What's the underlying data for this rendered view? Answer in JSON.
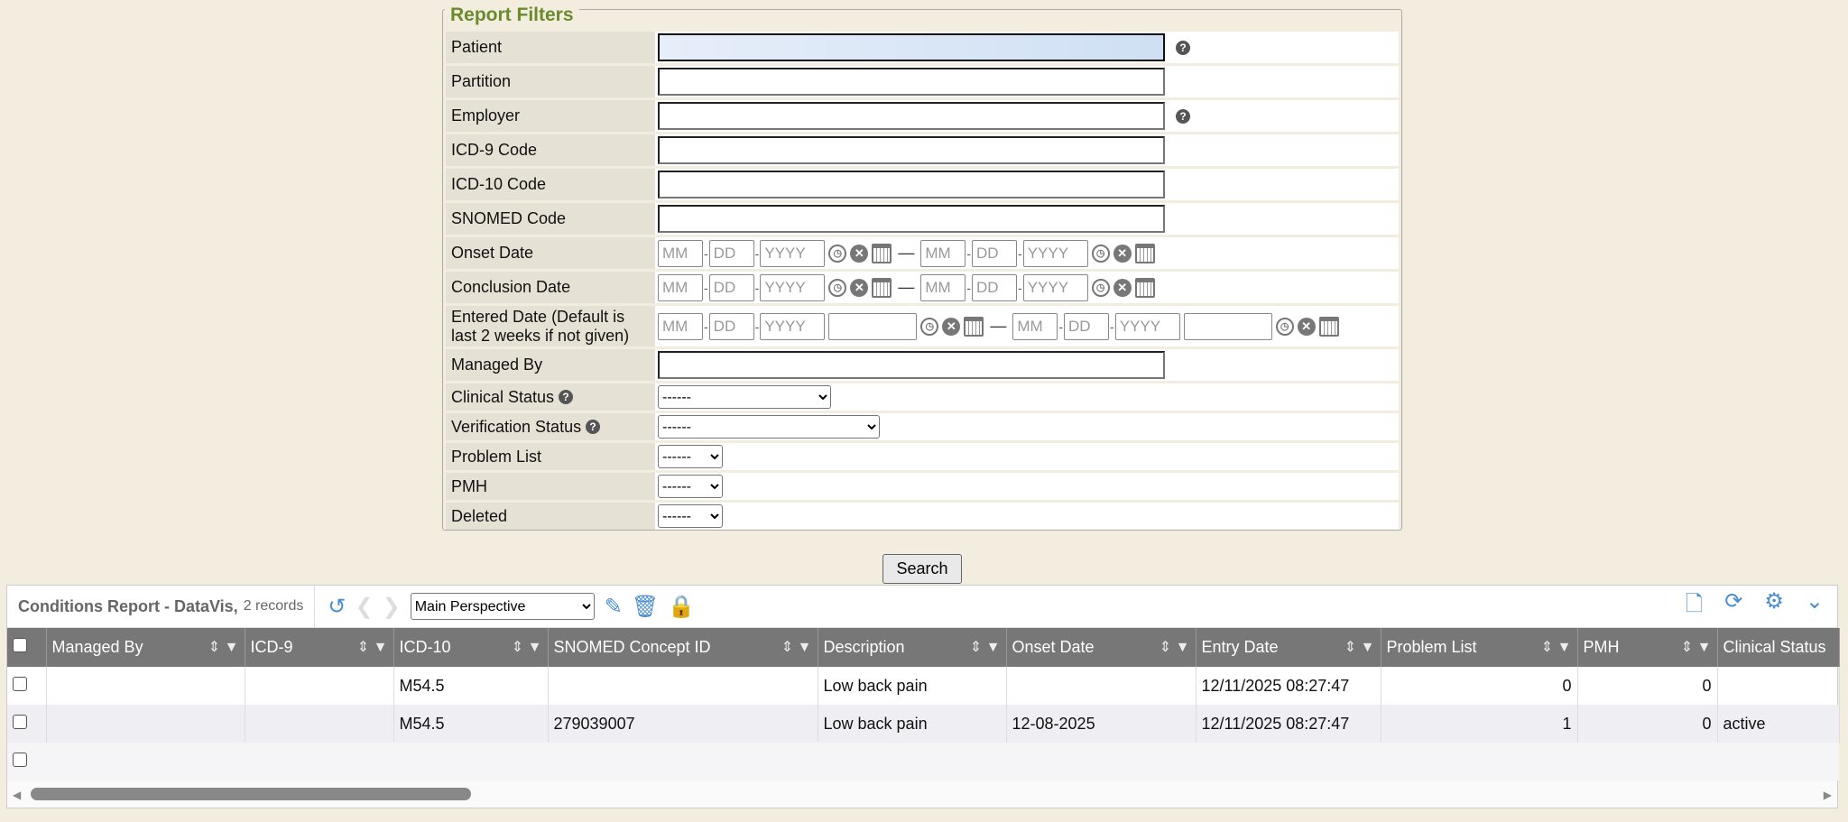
{
  "filters": {
    "legend": "Report Filters",
    "patient": "Patient",
    "partition": "Partition",
    "employer": "Employer",
    "icd9": "ICD-9 Code",
    "icd10": "ICD-10 Code",
    "snomed": "SNOMED Code",
    "onset": "Onset Date",
    "conclusion": "Conclusion Date",
    "entered": "Entered Date (Default is last 2 weeks if not given)",
    "managed": "Managed By",
    "clinical": "Clinical Status",
    "verification": "Verification Status",
    "problem": "Problem List",
    "pmh": "PMH",
    "deleted": "Deleted",
    "mm": "MM",
    "dd": "DD",
    "yyyy": "YYYY",
    "dash": "—",
    "select_default": "------"
  },
  "search_label": "Search",
  "grid": {
    "title": "Conditions Report - DataVis,",
    "count": "2 records",
    "perspective": "Main Perspective",
    "columns": [
      "Managed By",
      "ICD-9",
      "ICD-10",
      "SNOMED Concept ID",
      "Description",
      "Onset Date",
      "Entry Date",
      "Problem List",
      "PMH",
      "Clinical Status"
    ],
    "rows": [
      [
        "",
        "",
        "M54.5",
        "",
        "Low back pain",
        "",
        "12/11/2025 08:27:47",
        "0",
        "0",
        ""
      ],
      [
        "",
        "",
        "M54.5",
        "279039007",
        "Low back pain",
        "12-08-2025",
        "12/11/2025 08:27:47",
        "1",
        "0",
        "active"
      ]
    ]
  },
  "colors": {
    "accent": "#4a8ed0",
    "legend": "#6b8a2c",
    "header": "#777777"
  }
}
